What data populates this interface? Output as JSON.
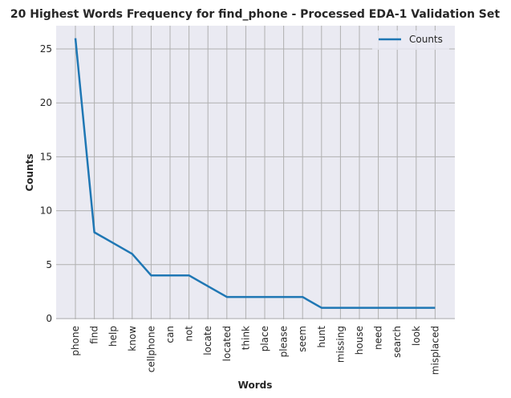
{
  "chart_data": {
    "type": "line",
    "title": "20 Highest Words Frequency for find_phone - Processed EDA-1 Validation Set",
    "xlabel": "Words",
    "ylabel": "Counts",
    "categories": [
      "phone",
      "find",
      "help",
      "know",
      "cellphone",
      "can",
      "not",
      "locate",
      "located",
      "think",
      "place",
      "please",
      "seem",
      "hunt",
      "missing",
      "house",
      "need",
      "search",
      "look",
      "misplaced"
    ],
    "series": [
      {
        "name": "Counts",
        "values": [
          26,
          8,
          7,
          6,
          4,
          4,
          4,
          3,
          2,
          2,
          2,
          2,
          2,
          1,
          1,
          1,
          1,
          1,
          1,
          1
        ]
      }
    ],
    "ylim": [
      0,
      27.25
    ],
    "yticks": [
      0,
      5,
      10,
      15,
      20,
      25
    ],
    "grid": true,
    "legend": "top-right",
    "colors": {
      "line": "#1f77b4",
      "background": "#eaeaf2",
      "grid": "#b0b0b0"
    }
  }
}
